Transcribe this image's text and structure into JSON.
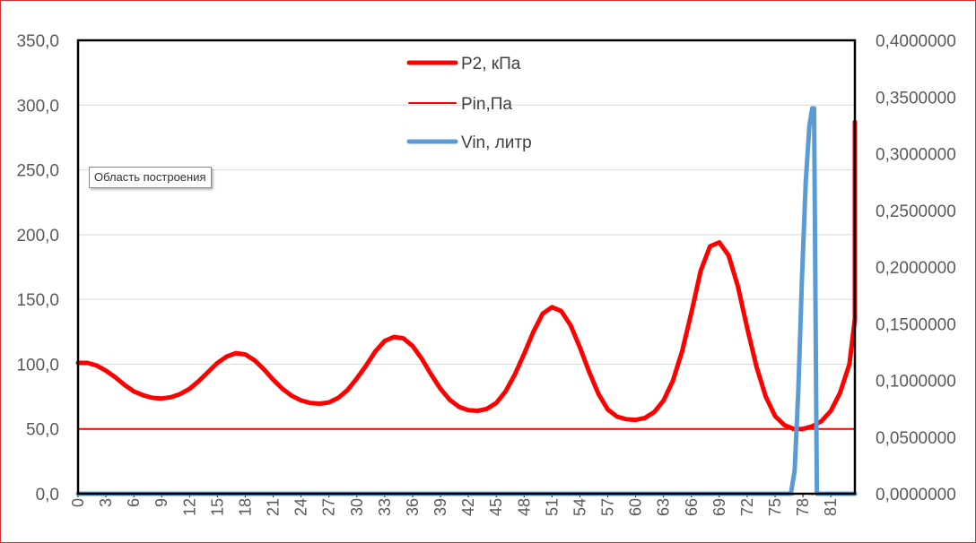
{
  "tooltip": "Область построения",
  "colors": {
    "p2": "#ff0000",
    "pin": "#ff0000",
    "vin": "#5b9bd5",
    "frame": "#d03030",
    "grid": "#d9d9d9",
    "axis_text": "#595959"
  },
  "chart_data": {
    "type": "line",
    "legend_position": "top-center",
    "grid": true,
    "categories": [
      0,
      3,
      6,
      9,
      12,
      15,
      18,
      21,
      24,
      27,
      30,
      33,
      36,
      39,
      42,
      45,
      48,
      51,
      54,
      57,
      60,
      63,
      66,
      69,
      72,
      75,
      78,
      81
    ],
    "category_labels": [
      "0",
      "3",
      "6",
      "9",
      "12",
      "15",
      "18",
      "21",
      "24",
      "27",
      "30",
      "33",
      "36",
      "39",
      "42",
      "45",
      "48",
      "51",
      "54",
      "57",
      "60",
      "63",
      "66",
      "69",
      "72",
      "75",
      "78",
      "81"
    ],
    "xlim": [
      0,
      84
    ],
    "y_left": {
      "range": [
        0,
        350
      ],
      "ticks": [
        "0,0",
        "50,0",
        "100,0",
        "150,0",
        "200,0",
        "250,0",
        "300,0",
        "350,0"
      ]
    },
    "y_right": {
      "range": [
        0,
        0.4
      ],
      "ticks": [
        "0,0000000",
        "0,0500000",
        "0,1000000",
        "0,1500000",
        "0,2000000",
        "0,2500000",
        "0,3000000",
        "0,3500000",
        "0,4000000"
      ]
    },
    "series": [
      {
        "name": "P2, кПа",
        "axis": "left",
        "width": 5,
        "points": [
          [
            0,
            101
          ],
          [
            1,
            101
          ],
          [
            2,
            99
          ],
          [
            3,
            95
          ],
          [
            4,
            90
          ],
          [
            5,
            84
          ],
          [
            6,
            79
          ],
          [
            7,
            76
          ],
          [
            8,
            74
          ],
          [
            9,
            73.5
          ],
          [
            10,
            74.5
          ],
          [
            11,
            77
          ],
          [
            12,
            81
          ],
          [
            13,
            87
          ],
          [
            14,
            94
          ],
          [
            15,
            101
          ],
          [
            16,
            106
          ],
          [
            17,
            108.5
          ],
          [
            18,
            107.5
          ],
          [
            19,
            103
          ],
          [
            20,
            96
          ],
          [
            21,
            88
          ],
          [
            22,
            81
          ],
          [
            23,
            75.5
          ],
          [
            24,
            72
          ],
          [
            25,
            70
          ],
          [
            26,
            69.5
          ],
          [
            27,
            70.5
          ],
          [
            28,
            74
          ],
          [
            29,
            80
          ],
          [
            30,
            89
          ],
          [
            31,
            99
          ],
          [
            32,
            110
          ],
          [
            33,
            118
          ],
          [
            34,
            121
          ],
          [
            35,
            120
          ],
          [
            36,
            114
          ],
          [
            37,
            104
          ],
          [
            38,
            92
          ],
          [
            39,
            81
          ],
          [
            40,
            72.5
          ],
          [
            41,
            67
          ],
          [
            42,
            64.5
          ],
          [
            43,
            64
          ],
          [
            44,
            65.5
          ],
          [
            45,
            70
          ],
          [
            46,
            79
          ],
          [
            47,
            92
          ],
          [
            48,
            108
          ],
          [
            49,
            125
          ],
          [
            50,
            139
          ],
          [
            51,
            144
          ],
          [
            52,
            141
          ],
          [
            53,
            130
          ],
          [
            54,
            113
          ],
          [
            55,
            94
          ],
          [
            56,
            77
          ],
          [
            57,
            65
          ],
          [
            58,
            59.5
          ],
          [
            59,
            57.5
          ],
          [
            60,
            57
          ],
          [
            61,
            58.5
          ],
          [
            62,
            63
          ],
          [
            63,
            72
          ],
          [
            64,
            87
          ],
          [
            65,
            110
          ],
          [
            66,
            140
          ],
          [
            67,
            172
          ],
          [
            68,
            191
          ],
          [
            69,
            194
          ],
          [
            70,
            184
          ],
          [
            71,
            160
          ],
          [
            72,
            128
          ],
          [
            73,
            98
          ],
          [
            74,
            75
          ],
          [
            75,
            60
          ],
          [
            76,
            53
          ],
          [
            77,
            50
          ],
          [
            78,
            50
          ],
          [
            79,
            52
          ],
          [
            80,
            56
          ],
          [
            81,
            64
          ],
          [
            82,
            78
          ],
          [
            83,
            100
          ],
          [
            84,
            135
          ],
          [
            85,
            185
          ],
          [
            86,
            245
          ],
          [
            86.6,
            287
          ]
        ]
      },
      {
        "name": "Pin,Па",
        "axis": "left",
        "width": 2,
        "points": [
          [
            0,
            50
          ],
          [
            86.6,
            50
          ]
        ]
      },
      {
        "name": "Vin, литр",
        "axis": "right",
        "width": 5,
        "points": [
          [
            0,
            0
          ],
          [
            76.7,
            0
          ],
          [
            77.1,
            0.02
          ],
          [
            77.5,
            0.09
          ],
          [
            77.9,
            0.19
          ],
          [
            78.3,
            0.275
          ],
          [
            78.7,
            0.325
          ],
          [
            79.0,
            0.34
          ],
          [
            79.2,
            0.34
          ],
          [
            79.5,
            0.0
          ],
          [
            86.6,
            0
          ]
        ]
      }
    ]
  }
}
